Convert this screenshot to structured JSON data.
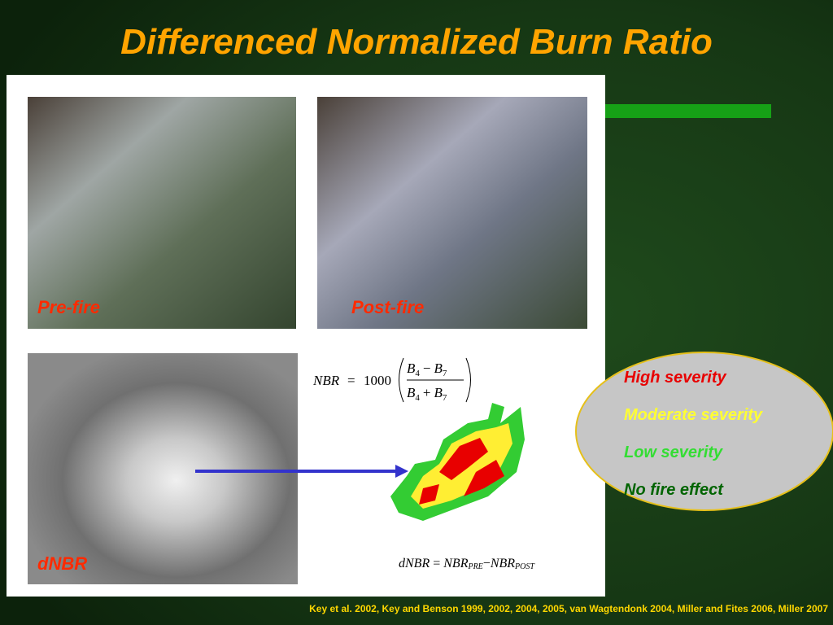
{
  "title": "Differenced Normalized Burn Ratio",
  "images": [
    {
      "label": "Pre-fire"
    },
    {
      "label": "Post-fire"
    },
    {
      "label": "dNBR"
    }
  ],
  "nbr_formula": {
    "lhs": "NBR",
    "equals": "=",
    "factor": "1000",
    "numerator": {
      "a": "B",
      "a_sub": "4",
      "op": "−",
      "b": "B",
      "b_sub": "7"
    },
    "denominator": {
      "a": "B",
      "a_sub": "4",
      "op": "+",
      "b": "B",
      "b_sub": "7"
    }
  },
  "dnbr_formula": {
    "lhs": "dNBR",
    "equals": "=",
    "term1": "NBR",
    "term1_sub": "PRE",
    "minus": "−",
    "term2": "NBR",
    "term2_sub": "POST"
  },
  "legend": [
    {
      "label": "High severity",
      "color": "#e80000"
    },
    {
      "label": "Moderate severity",
      "color": "#ffff33"
    },
    {
      "label": "Low severity",
      "color": "#33dd33"
    },
    {
      "label": "No fire effect",
      "color": "#006400"
    }
  ],
  "citation": "Key et al. 2002, Key and Benson 1999, 2002, 2004, 2005, van Wagtendonk 2004, Miller and Fites 2006, Miller 2007"
}
